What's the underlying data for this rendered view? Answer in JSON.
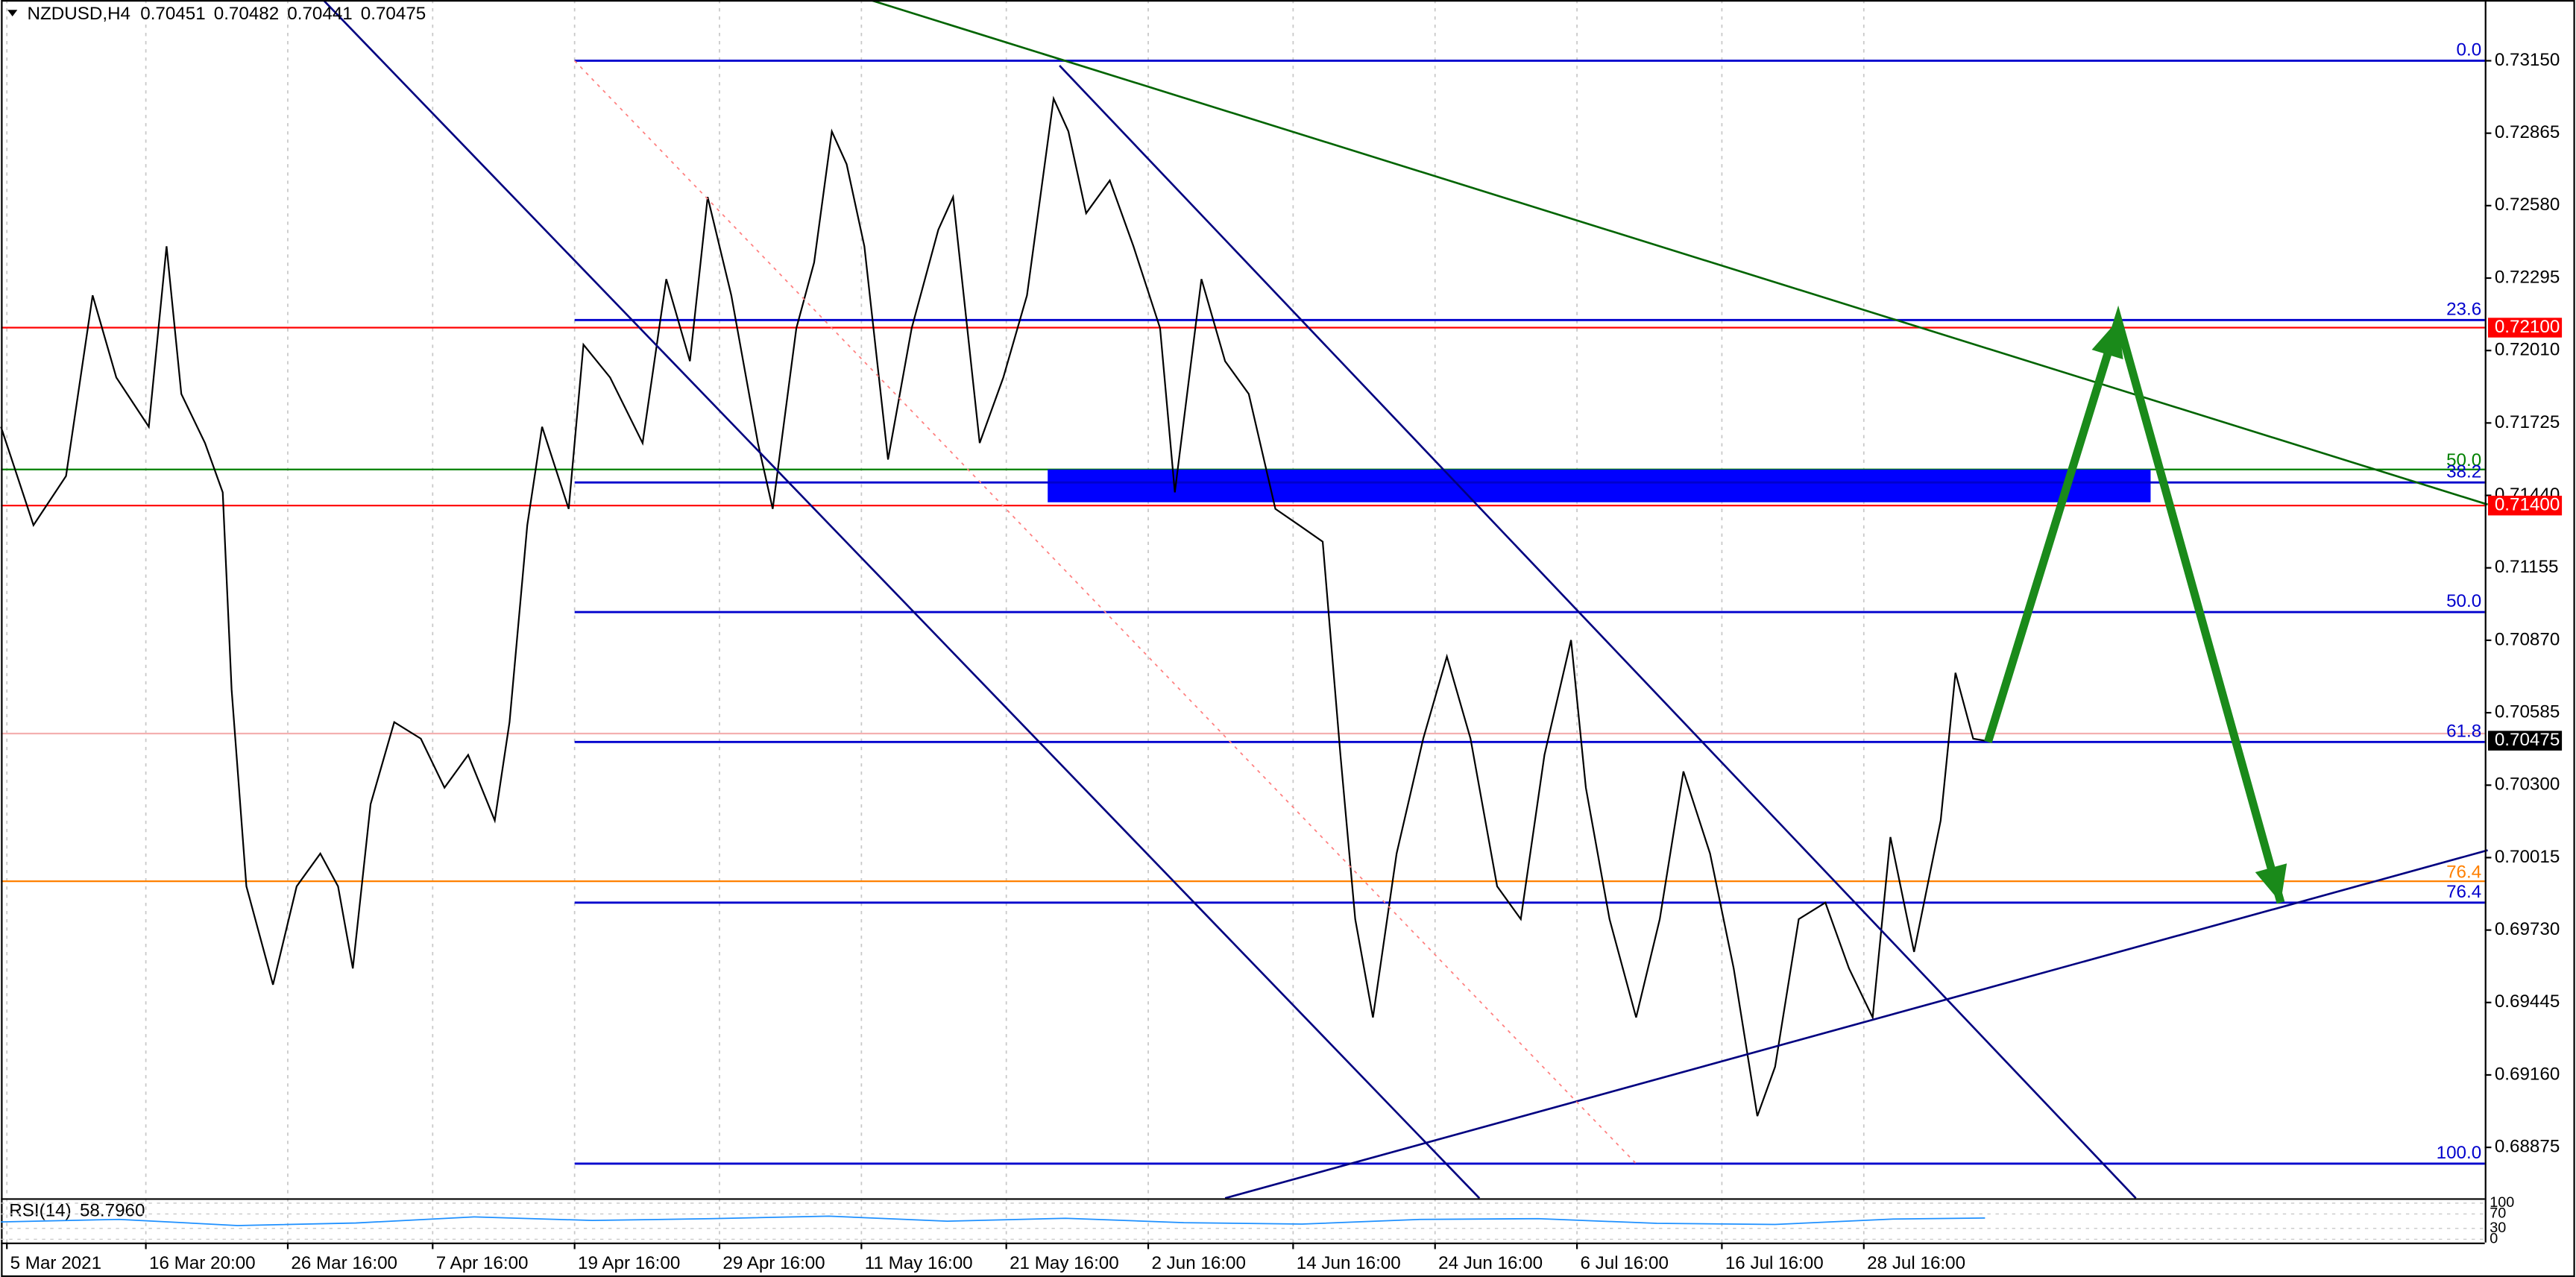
{
  "chart_data": {
    "type": "line",
    "title": "NZDUSD,H4",
    "ohlc": [
      0.70451,
      0.70482,
      0.70441,
      0.70475
    ],
    "color": "#000000",
    "x": [
      0,
      11,
      22,
      31,
      39,
      50,
      56,
      61,
      69,
      75,
      78,
      83,
      92,
      100,
      108,
      114,
      119,
      125,
      133,
      142,
      150,
      158,
      167,
      172,
      178,
      183,
      192,
      197,
      206,
      217,
      225,
      233,
      239,
      247,
      256,
      261,
      269,
      275,
      281,
      286,
      292,
      300,
      308,
      317,
      322,
      331,
      339,
      347,
      356,
      361,
      367,
      375,
      383,
      392,
      397,
      406,
      414,
      422,
      431,
      439,
      447,
      453,
      458,
      464,
      472,
      481,
      489,
      497,
      506,
      514,
      522,
      531,
      536,
      544,
      553,
      561,
      569,
      578,
      586,
      594,
      600,
      608,
      617,
      625,
      633,
      639,
      647,
      656,
      661,
      667,
      671
    ],
    "values": [
      0.7171,
      0.71323,
      0.71516,
      0.72227,
      0.71904,
      0.7171,
      0.7242,
      0.71839,
      0.71646,
      0.71452,
      0.70677,
      0.69902,
      0.69515,
      0.69902,
      0.70031,
      0.69902,
      0.69579,
      0.70225,
      0.70548,
      0.70483,
      0.7029,
      0.70419,
      0.70161,
      0.70548,
      0.71323,
      0.7171,
      0.71387,
      0.72033,
      0.71904,
      0.71646,
      0.72291,
      0.71968,
      0.72614,
      0.72227,
      0.71646,
      0.71387,
      0.72098,
      0.72356,
      0.72872,
      0.72743,
      0.7242,
      0.71581,
      0.72098,
      0.72485,
      0.72614,
      0.71646,
      0.71904,
      0.72227,
      0.73001,
      0.72872,
      0.7255,
      0.72679,
      0.7242,
      0.72098,
      0.71452,
      0.72291,
      0.71968,
      0.71839,
      0.71387,
      0.71323,
      0.71258,
      0.70419,
      0.69773,
      0.69386,
      0.70031,
      0.70483,
      0.70806,
      0.70483,
      0.69902,
      0.69773,
      0.70419,
      0.70871,
      0.7029,
      0.69773,
      0.69386,
      0.69773,
      0.70354,
      0.70031,
      0.69579,
      0.68998,
      0.69192,
      0.69773,
      0.69838,
      0.69579,
      0.69386,
      0.70096,
      0.69644,
      0.70161,
      0.70742,
      0.70483,
      0.70475
    ],
    "xlim": [
      0,
      840
    ],
    "xticks": [
      {
        "value": 2,
        "label": "5 Mar 2021"
      },
      {
        "value": 49,
        "label": "16 Mar 20:00"
      },
      {
        "value": 97,
        "label": "26 Mar 16:00"
      },
      {
        "value": 146,
        "label": "7 Apr 16:00"
      },
      {
        "value": 194,
        "label": "19 Apr 16:00"
      },
      {
        "value": 243,
        "label": "29 Apr 16:00"
      },
      {
        "value": 291,
        "label": "11 May 16:00"
      },
      {
        "value": 340,
        "label": "21 May 16:00"
      },
      {
        "value": 388,
        "label": "2 Jun 16:00"
      },
      {
        "value": 437,
        "label": "14 Jun 16:00"
      },
      {
        "value": 485,
        "label": "24 Jun 16:00"
      },
      {
        "value": 533,
        "label": "6 Jul 16:00"
      },
      {
        "value": 582,
        "label": "16 Jul 16:00"
      },
      {
        "value": 630,
        "label": "28 Jul 16:00"
      }
    ],
    "ylim": [
      0.68675,
      0.73389
    ],
    "yticks": [
      {
        "value": 0.7315,
        "label": "0.73150"
      },
      {
        "value": 0.72865,
        "label": "0.72865"
      },
      {
        "value": 0.7258,
        "label": "0.72580"
      },
      {
        "value": 0.72295,
        "label": "0.72295"
      },
      {
        "value": 0.7201,
        "label": "0.72010"
      },
      {
        "value": 0.71725,
        "label": "0.71725"
      },
      {
        "value": 0.7144,
        "label": "0.71440"
      },
      {
        "value": 0.71155,
        "label": "0.71155"
      },
      {
        "value": 0.7087,
        "label": "0.70870"
      },
      {
        "value": 0.70585,
        "label": "0.70585"
      },
      {
        "value": 0.703,
        "label": "0.70300"
      },
      {
        "value": 0.70015,
        "label": "0.70015"
      },
      {
        "value": 0.6973,
        "label": "0.69730"
      },
      {
        "value": 0.69445,
        "label": "0.69445"
      },
      {
        "value": 0.6916,
        "label": "0.69160"
      },
      {
        "value": 0.68875,
        "label": "0.68875"
      }
    ],
    "grid": true,
    "price_tags": [
      {
        "value": 0.721,
        "label": "0.72100",
        "color": "#ff0000"
      },
      {
        "value": 0.714,
        "label": "0.71400",
        "color": "#ff0000"
      },
      {
        "value": 0.70475,
        "label": "0.70475",
        "color": "#000000"
      }
    ],
    "hlines": [
      {
        "value": 0.721,
        "color": "#ff0000"
      },
      {
        "value": 0.714,
        "color": "#ff0000"
      },
      {
        "value": 0.71542,
        "color": "#008000",
        "label": "50.0"
      },
      {
        "value": 0.69922,
        "color": "#ff8000",
        "label": "76.4"
      },
      {
        "value": 0.70503,
        "color": "#f4b0b0"
      }
    ],
    "fib_start": 194,
    "fib_color": "#0000cd",
    "fib_levels": [
      {
        "label": "0.0",
        "value": 0.7315
      },
      {
        "label": "23.6",
        "value": 0.7213
      },
      {
        "label": "38.2",
        "value": 0.71491
      },
      {
        "label": "50.0",
        "value": 0.70981
      },
      {
        "label": "61.8",
        "value": 0.7047
      },
      {
        "label": "76.4",
        "value": 0.69838
      },
      {
        "label": "100.0",
        "value": 0.68811
      }
    ],
    "zone": {
      "x": [
        354,
        727
      ],
      "y": [
        0.71413,
        0.71542
      ],
      "color": "#0000ff"
    },
    "trendlines": [
      {
        "x": [
          109,
          500
        ],
        "y": [
          0.73389,
          0.68675
        ],
        "color": "#000080"
      },
      {
        "x": [
          358,
          722
        ],
        "y": [
          0.73131,
          0.68675
        ],
        "color": "#000080"
      },
      {
        "x": [
          294,
          841
        ],
        "y": [
          0.73389,
          0.71404
        ],
        "color": "#006400"
      },
      {
        "x": [
          414,
          841
        ],
        "y": [
          0.68675,
          0.70044
        ],
        "color": "#000080"
      },
      {
        "x": [
          194,
          553
        ],
        "y": [
          0.7315,
          0.68811
        ],
        "color": "#ff8080",
        "dash": true
      }
    ],
    "arrows": {
      "x": [
        672,
        716,
        771
      ],
      "y": [
        0.7047,
        0.7213,
        0.69838
      ],
      "color": "#1a8a1a"
    },
    "rsi": {
      "title": "RSI(14)",
      "current": {
        "value": 58.796,
        "label": "58.7960"
      },
      "color": "#1e90ff",
      "x": [
        0,
        40,
        80,
        120,
        160,
        200,
        240,
        280,
        320,
        360,
        400,
        440,
        480,
        520,
        560,
        600,
        640,
        671
      ],
      "values": [
        48,
        55,
        38,
        45,
        62,
        52,
        57,
        64,
        50,
        58,
        46,
        42,
        55,
        57,
        44,
        41,
        56,
        58.796
      ],
      "ylim": [
        0,
        100
      ],
      "yticks": [
        0,
        30,
        70,
        100
      ]
    }
  }
}
